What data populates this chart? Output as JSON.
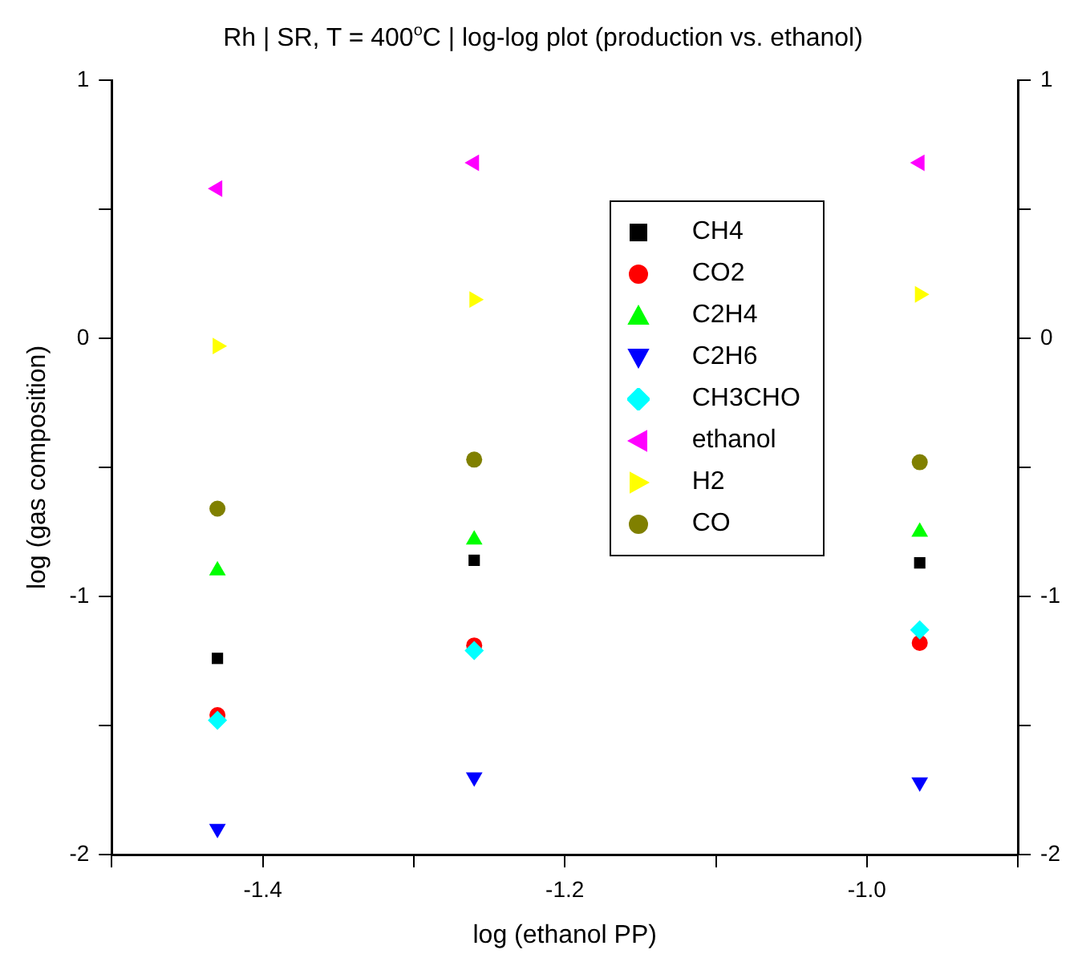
{
  "chart_data": {
    "type": "scatter",
    "title": "Rh | SR, T = 400$^{o}$C | log-log plot (production vs. ethanol)",
    "xlabel": "log (ethanol PP)",
    "ylabel": "log (gas composition)",
    "x": [
      -1.43,
      -1.26,
      -0.965
    ],
    "series": [
      {
        "name": "CH4",
        "color": "#000000",
        "marker": "square",
        "values": [
          -1.24,
          -0.86,
          -0.87
        ]
      },
      {
        "name": "CO2",
        "color": "#ff0000",
        "marker": "circle",
        "values": [
          -1.46,
          -1.19,
          -1.18
        ]
      },
      {
        "name": "C2H4",
        "color": "#00ff00",
        "marker": "triangle",
        "values": [
          -0.9,
          -0.78,
          -0.75
        ]
      },
      {
        "name": "C2H6",
        "color": "#0000ff",
        "marker": "triangle_down",
        "values": [
          -1.9,
          -1.7,
          -1.72
        ]
      },
      {
        "name": "CH3CHO",
        "color": "#00ffff",
        "marker": "diamond",
        "values": [
          -1.48,
          -1.21,
          -1.13
        ]
      },
      {
        "name": "ethanol",
        "color": "#ff00ff",
        "marker": "triangle_left",
        "values": [
          0.58,
          0.68,
          0.68
        ]
      },
      {
        "name": "H2",
        "color": "#ffff00",
        "marker": "triangle_right",
        "values": [
          -0.03,
          0.15,
          0.17
        ]
      },
      {
        "name": "CO",
        "color": "#808000",
        "marker": "circle",
        "values": [
          -0.66,
          -0.47,
          -0.48
        ]
      }
    ],
    "xlim": [
      -1.5,
      -0.9
    ],
    "xticks": [
      {
        "value": -1.5,
        "label": null
      },
      -1.4,
      {
        "value": -1.3,
        "label": null
      },
      -1.2,
      {
        "value": -1.1,
        "label": null
      },
      {
        "value": -1.0,
        "label": "-1.0"
      },
      {
        "value": -0.9,
        "label": null
      }
    ],
    "ylim": [
      -2,
      1
    ],
    "yticks": [
      -2,
      {
        "value": -1.5,
        "label": null
      },
      -1,
      {
        "value": -0.5,
        "label": null
      },
      0,
      {
        "value": 0.5,
        "label": null
      },
      1
    ],
    "y2lim": [
      -2,
      1
    ],
    "y2ticks": [
      -2,
      {
        "value": -1.5,
        "label": null
      },
      -1,
      {
        "value": -0.5,
        "label": null
      },
      0,
      {
        "value": 0.5,
        "label": null
      },
      1
    ],
    "grid": false,
    "legend": "top right"
  }
}
